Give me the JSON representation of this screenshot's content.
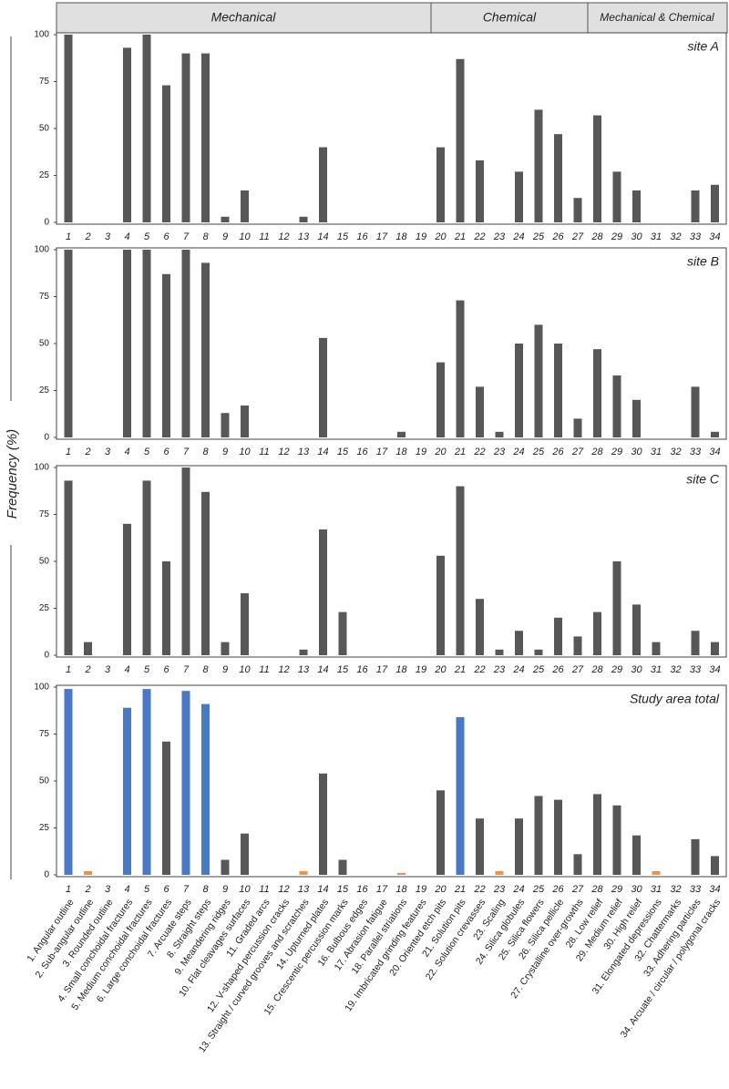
{
  "header_groups": [
    "Mechanical",
    "Chemical",
    "Mechanical & Chemical"
  ],
  "y_label": "Frequency (%)",
  "chart_data": [
    {
      "type": "bar",
      "title": "site A",
      "color": "#575757",
      "ylim": [
        0,
        100
      ],
      "yticks": [
        0,
        25,
        50,
        75,
        100
      ],
      "categories": [
        "1",
        "2",
        "3",
        "4",
        "5",
        "6",
        "7",
        "8",
        "9",
        "10",
        "11",
        "12",
        "13",
        "14",
        "15",
        "16",
        "17",
        "18",
        "19",
        "20",
        "21",
        "22",
        "23",
        "24",
        "25",
        "26",
        "27",
        "28",
        "29",
        "30",
        "31",
        "32",
        "33",
        "34"
      ],
      "values": [
        100,
        0,
        0,
        93,
        100,
        73,
        90,
        90,
        3,
        17,
        0,
        0,
        3,
        40,
        0,
        0,
        0,
        0,
        0,
        40,
        87,
        33,
        0,
        27,
        60,
        47,
        13,
        57,
        27,
        17,
        0,
        0,
        17,
        20
      ]
    },
    {
      "type": "bar",
      "title": "site B",
      "color": "#575757",
      "ylim": [
        0,
        100
      ],
      "yticks": [
        0,
        25,
        50,
        75,
        100
      ],
      "categories": [
        "1",
        "2",
        "3",
        "4",
        "5",
        "6",
        "7",
        "8",
        "9",
        "10",
        "11",
        "12",
        "13",
        "14",
        "15",
        "16",
        "17",
        "18",
        "19",
        "20",
        "21",
        "22",
        "23",
        "24",
        "25",
        "26",
        "27",
        "28",
        "29",
        "30",
        "31",
        "32",
        "33",
        "34"
      ],
      "values": [
        100,
        0,
        0,
        100,
        100,
        87,
        100,
        93,
        13,
        17,
        0,
        0,
        0,
        53,
        0,
        0,
        0,
        3,
        0,
        40,
        73,
        27,
        3,
        50,
        60,
        50,
        10,
        47,
        33,
        20,
        0,
        0,
        27,
        3
      ]
    },
    {
      "type": "bar",
      "title": "site C",
      "color": "#575757",
      "ylim": [
        0,
        100
      ],
      "yticks": [
        0,
        25,
        50,
        75,
        100
      ],
      "categories": [
        "1",
        "2",
        "3",
        "4",
        "5",
        "6",
        "7",
        "8",
        "9",
        "10",
        "11",
        "12",
        "13",
        "14",
        "15",
        "16",
        "17",
        "18",
        "19",
        "20",
        "21",
        "22",
        "23",
        "24",
        "25",
        "26",
        "27",
        "28",
        "29",
        "30",
        "31",
        "32",
        "33",
        "34"
      ],
      "values": [
        93,
        7,
        0,
        70,
        93,
        50,
        100,
        87,
        7,
        33,
        0,
        0,
        3,
        67,
        23,
        0,
        0,
        0,
        0,
        53,
        90,
        30,
        3,
        13,
        3,
        20,
        10,
        23,
        50,
        27,
        7,
        0,
        13,
        7
      ]
    },
    {
      "type": "bar",
      "title": "Study area total",
      "ylim": [
        0,
        100
      ],
      "yticks": [
        0,
        25,
        50,
        75,
        100
      ],
      "categories": [
        "1",
        "2",
        "3",
        "4",
        "5",
        "6",
        "7",
        "8",
        "9",
        "10",
        "11",
        "12",
        "13",
        "14",
        "15",
        "16",
        "17",
        "18",
        "19",
        "20",
        "21",
        "22",
        "23",
        "24",
        "25",
        "26",
        "27",
        "28",
        "29",
        "30",
        "31",
        "32",
        "33",
        "34"
      ],
      "values": [
        99,
        2,
        0,
        89,
        99,
        71,
        98,
        91,
        8,
        22,
        0,
        0,
        2,
        54,
        8,
        0,
        0,
        1,
        0,
        45,
        84,
        30,
        2,
        30,
        42,
        40,
        11,
        43,
        37,
        21,
        2,
        0,
        19,
        10
      ],
      "colors": [
        "#4a78c9",
        "#f0914a",
        "#575757",
        "#4a78c9",
        "#4a78c9",
        "#575757",
        "#4a78c9",
        "#4a78c9",
        "#575757",
        "#575757",
        "#575757",
        "#575757",
        "#f0914a",
        "#575757",
        "#575757",
        "#575757",
        "#575757",
        "#f0914a",
        "#575757",
        "#575757",
        "#4a78c9",
        "#575757",
        "#f0914a",
        "#575757",
        "#575757",
        "#575757",
        "#575757",
        "#575757",
        "#575757",
        "#575757",
        "#f0914a",
        "#575757",
        "#575757",
        "#575757"
      ],
      "category_names": [
        "1. Angular outline",
        "2. Sub-angular outline",
        "3. Rounded outline",
        "4. Small conchoidal fractures",
        "5. Medium conchoidal fractures",
        "6. Large conchoidal fractures",
        "7. Arcuate steps",
        "8. Straight steps",
        "9. Meandering ridges",
        "10. Flat cleavages surfaces",
        "11. Graded arcs",
        "12. V-shaped percussion cracks",
        "13. Straight / curved grooves and scratches",
        "14. Upturned plates",
        "15. Crescentic percussion marks",
        "16. Bulbous edges",
        "17. Abrasion fatigue",
        "18. Parallel striations",
        "19. Imbricated grinding features",
        "20. Oriented etch pits",
        "21. Solution pits",
        "22. Solution crevasses",
        "23. Scaling",
        "24. Silica globules",
        "25. Silica flowers",
        "26. Silica pellicle",
        "27. Crystalline over-growths",
        "28. Low relief",
        "29. Medium relief",
        "30. High relief",
        "31. Elongated depressions",
        "32. Chattermarks",
        "33. Adhering particles",
        "34. Arcuate / circular / polygonal cracks"
      ]
    }
  ]
}
